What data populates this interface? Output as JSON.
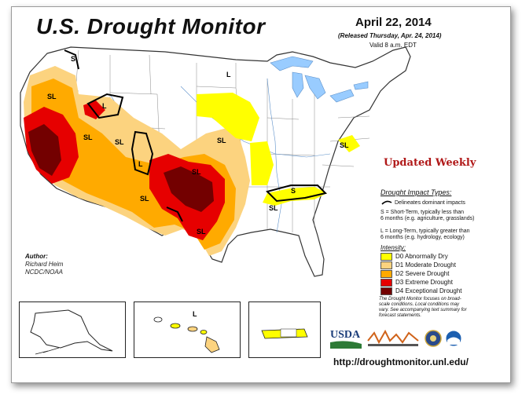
{
  "header": {
    "title": "U.S. Drought Monitor",
    "date": "April 22, 2014",
    "released": "(Released Thursday, Apr. 24, 2014)",
    "valid": "Valid 8 a.m. EDT"
  },
  "banner": "Updated Weekly",
  "impact": {
    "title": "Drought Impact Types:",
    "delineates": "Delineates dominant impacts",
    "short_term_1": "S = Short-Term, typically less than",
    "short_term_2": "6 months (e.g. agriculture, grasslands)",
    "long_term_1": "L = Long-Term, typically greater than",
    "long_term_2": "6 months (e.g. hydrology, ecology)"
  },
  "intensity": {
    "title": "Intensity:",
    "categories": [
      {
        "label": "D0 Abnormally Dry",
        "color": "#ffff00"
      },
      {
        "label": "D1 Moderate Drought",
        "color": "#fcd37f"
      },
      {
        "label": "D2 Severe Drought",
        "color": "#ffaa00"
      },
      {
        "label": "D3 Extreme Drought",
        "color": "#e60000"
      },
      {
        "label": "D4 Exceptional Drought",
        "color": "#730000"
      }
    ]
  },
  "author": {
    "heading": "Author:",
    "name": "Richard Heim",
    "org": "NCDC/NOAA"
  },
  "note": {
    "line1": "The Drought Monitor focuses on broad-",
    "line2": "scale conditions. Local conditions may",
    "line3": "vary. See accompanying text summary for",
    "line4": "forecast statements."
  },
  "map_labels": {
    "s": "S",
    "sl": "SL",
    "l": "L"
  },
  "logos": {
    "usda": "USDA"
  },
  "url": "http://droughtmonitor.unl.edu/",
  "colors": {
    "d0": "#ffff00",
    "d1": "#fcd37f",
    "d2": "#ffaa00",
    "d3": "#e60000",
    "d4": "#730000",
    "water": "#99ccff",
    "banner": "#b01818"
  }
}
